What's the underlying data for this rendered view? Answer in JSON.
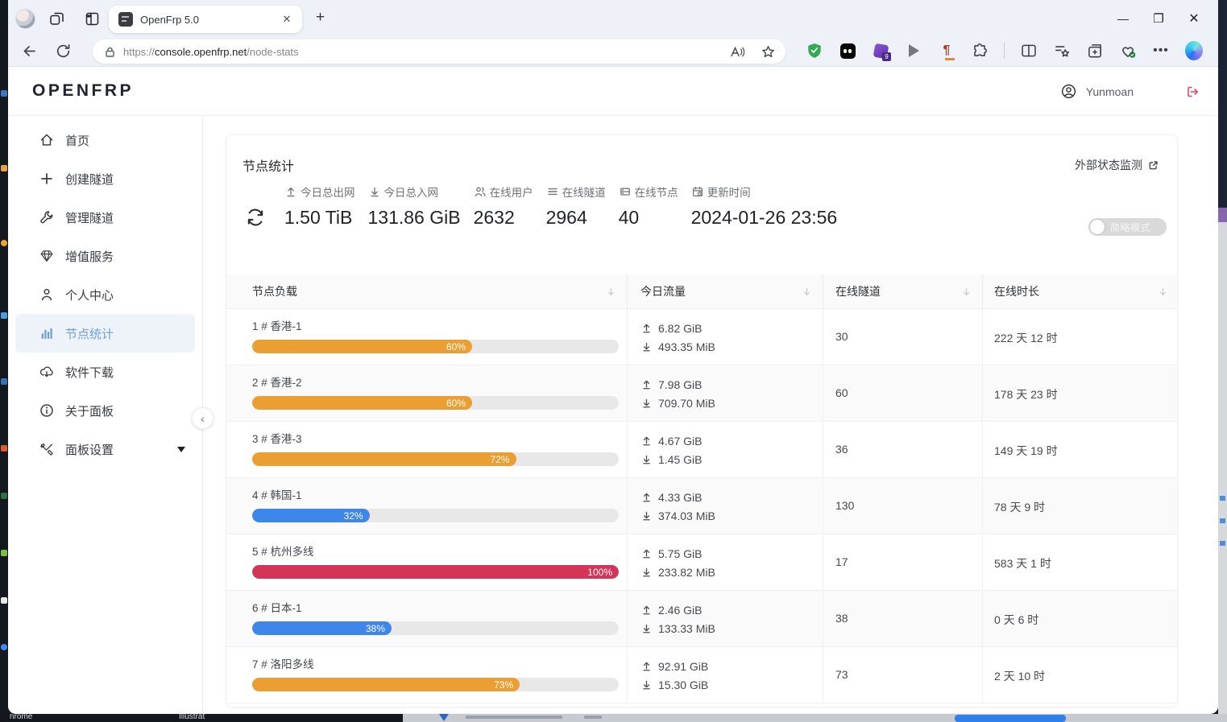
{
  "browser": {
    "tab": {
      "title": "OpenFrp 5.0"
    },
    "url": {
      "scheme": "https://",
      "host": "console.openfrp.net",
      "path": "/node-stats"
    },
    "extension_badge": "9"
  },
  "app_header": {
    "logo": "OPENFRP",
    "username": "Yunmoan"
  },
  "sidebar": {
    "items": [
      {
        "label": "首页",
        "icon": "home-icon",
        "active": false
      },
      {
        "label": "创建隧道",
        "icon": "plus-icon",
        "active": false
      },
      {
        "label": "管理隧道",
        "icon": "wrench-icon",
        "active": false
      },
      {
        "label": "增值服务",
        "icon": "diamond-icon",
        "active": false
      },
      {
        "label": "个人中心",
        "icon": "user-icon",
        "active": false
      },
      {
        "label": "节点统计",
        "icon": "bar-chart-icon",
        "active": true
      },
      {
        "label": "软件下载",
        "icon": "cloud-download-icon",
        "active": false
      },
      {
        "label": "关于面板",
        "icon": "info-icon",
        "active": false
      },
      {
        "label": "面板设置",
        "icon": "tools-icon",
        "active": false,
        "has_dropdown": true
      }
    ]
  },
  "card": {
    "title": "节点统计",
    "external_link": "外部状态监测",
    "toggle_label": "简略模式",
    "stats": [
      {
        "label": "今日总出网",
        "value": "1.50 TiB",
        "icon": "upload-icon"
      },
      {
        "label": "今日总入网",
        "value": "131.86 GiB",
        "icon": "download-icon"
      },
      {
        "label": "在线用户",
        "value": "2632",
        "icon": "users-icon"
      },
      {
        "label": "在线隧道",
        "value": "2964",
        "icon": "list-icon"
      },
      {
        "label": "在线节点",
        "value": "40",
        "icon": "server-icon"
      },
      {
        "label": "更新时间",
        "value": "2024-01-26 23:56",
        "icon": "schedule-icon"
      }
    ]
  },
  "table": {
    "columns": [
      {
        "label": "节点负载"
      },
      {
        "label": "今日流量"
      },
      {
        "label": "在线隧道"
      },
      {
        "label": "在线时长"
      }
    ],
    "rows": [
      {
        "name": "1 # 香港-1",
        "load_pct": 60,
        "color": "orange",
        "up": "6.82 GiB",
        "down": "493.35 MiB",
        "tunnels": "30",
        "uptime": "222 天 12 时"
      },
      {
        "name": "2 # 香港-2",
        "load_pct": 60,
        "color": "orange",
        "up": "7.98 GiB",
        "down": "709.70 MiB",
        "tunnels": "60",
        "uptime": "178 天 23 时"
      },
      {
        "name": "3 # 香港-3",
        "load_pct": 72,
        "color": "orange",
        "up": "4.67 GiB",
        "down": "1.45 GiB",
        "tunnels": "36",
        "uptime": "149 天 19 时"
      },
      {
        "name": "4 # 韩国-1",
        "load_pct": 32,
        "color": "blue",
        "up": "4.33 GiB",
        "down": "374.03 MiB",
        "tunnels": "130",
        "uptime": "78 天 9 时"
      },
      {
        "name": "5 # 杭州多线",
        "load_pct": 100,
        "color": "red",
        "up": "5.75 GiB",
        "down": "233.82 MiB",
        "tunnels": "17",
        "uptime": "583 天 1 时"
      },
      {
        "name": "6 # 日本-1",
        "load_pct": 38,
        "color": "blue",
        "up": "2.46 GiB",
        "down": "133.33 MiB",
        "tunnels": "38",
        "uptime": "0 天 6 时"
      },
      {
        "name": "7 # 洛阳多线",
        "load_pct": 73,
        "color": "orange",
        "up": "92.91 GiB",
        "down": "15.30 GiB",
        "tunnels": "73",
        "uptime": "2 天 10 时"
      }
    ]
  },
  "colors": {
    "orange": "#eb9e32",
    "blue": "#3e86e8",
    "red": "#d23557",
    "sidebar_active": "#71a0d6",
    "logout": "#e0486d",
    "shield_green": "#34a853"
  },
  "desktop": {
    "taskbar_fragments": [
      "hrome",
      "Illustrat"
    ]
  }
}
